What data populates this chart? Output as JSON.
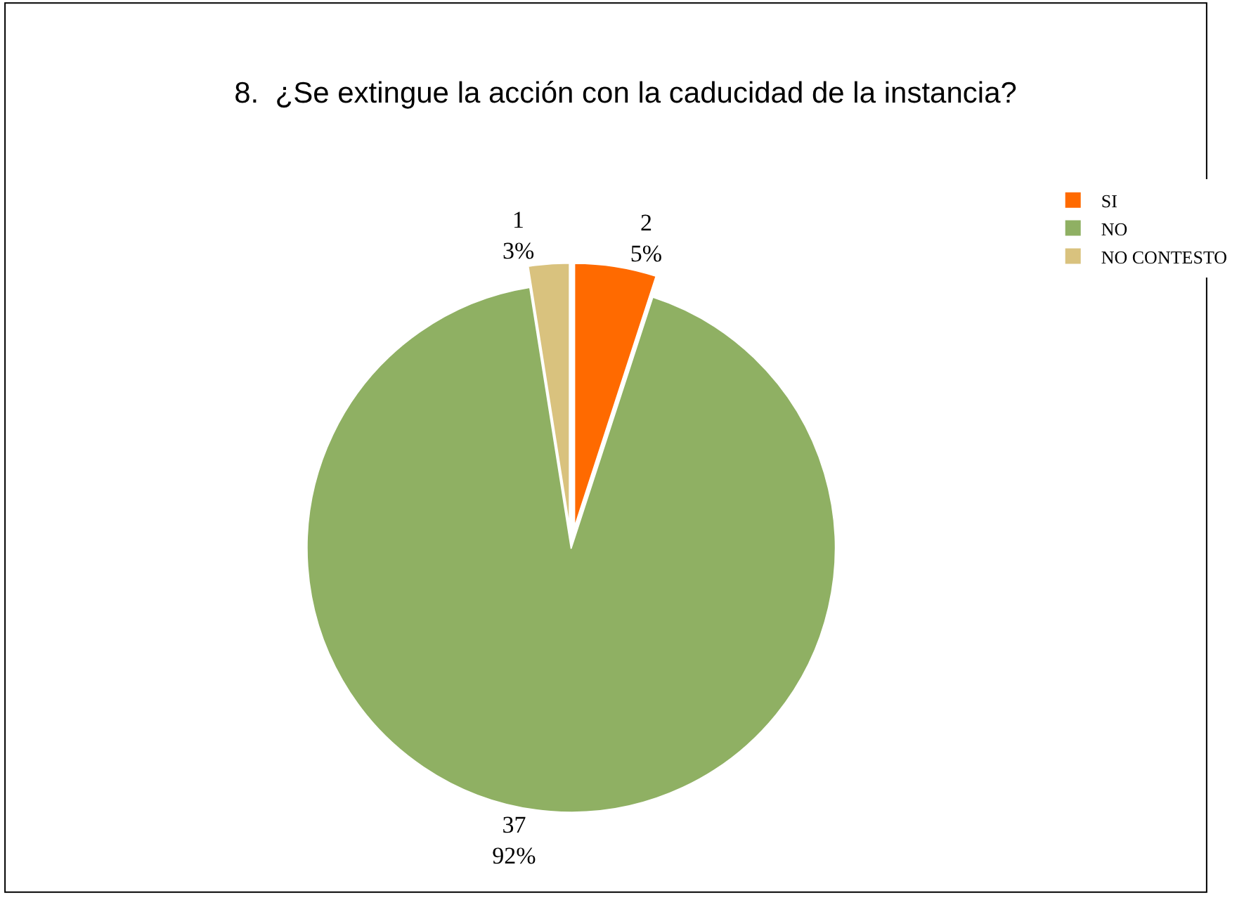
{
  "chart_data": {
    "type": "pie",
    "title": "8.  ¿Se extingue la acción con la caducidad de la instancia?",
    "categories": [
      "SI",
      "NO",
      "NO CONTESTO"
    ],
    "values": [
      2,
      37,
      1
    ],
    "colors": [
      "#ff6a00",
      "#8fb063",
      "#d9c27e"
    ],
    "value_labels": [
      "2\n5%",
      "37\n92%",
      "1\n3%"
    ],
    "legend": "top right"
  }
}
